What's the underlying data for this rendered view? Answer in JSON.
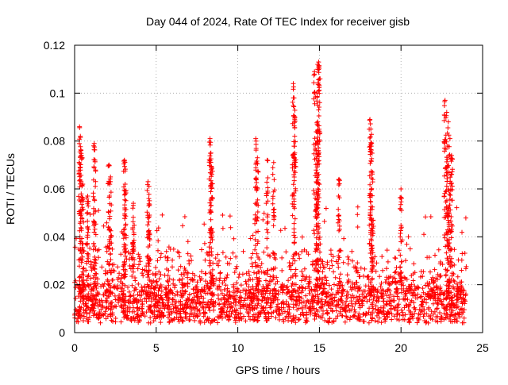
{
  "chart_data": {
    "type": "scatter",
    "title": "Day 044 of 2024, Rate Of TEC Index for receiver gisb",
    "xlabel": "GPS time / hours",
    "ylabel": "ROTI / TECUs",
    "xlim": [
      0,
      25
    ],
    "ylim": [
      0,
      0.12
    ],
    "xticks": [
      0,
      5,
      10,
      15,
      20,
      25
    ],
    "xtick_labels": [
      "0",
      "5",
      "10",
      "15",
      "20",
      "25"
    ],
    "yticks": [
      0,
      0.02,
      0.04,
      0.06,
      0.08,
      0.1,
      0.12
    ],
    "ytick_labels": [
      "0",
      "0.02",
      "0.04",
      "0.06",
      "0.08",
      "0.1",
      "0.12"
    ],
    "grid": true,
    "marker": "+",
    "color": "#ff0000",
    "series": [
      {
        "name": "ROTI",
        "base_level": 0.013,
        "x_range": [
          0,
          24
        ],
        "peaks": [
          [
            0.3,
            0.086
          ],
          [
            0.35,
            0.082
          ],
          [
            0.4,
            0.074
          ],
          [
            0.5,
            0.062
          ],
          [
            0.8,
            0.057
          ],
          [
            1.2,
            0.079
          ],
          [
            1.25,
            0.072
          ],
          [
            2.1,
            0.07
          ],
          [
            2.2,
            0.065
          ],
          [
            3.05,
            0.072
          ],
          [
            3.1,
            0.062
          ],
          [
            3.6,
            0.054
          ],
          [
            4.5,
            0.063
          ],
          [
            4.55,
            0.056
          ],
          [
            8.3,
            0.081
          ],
          [
            8.35,
            0.075
          ],
          [
            8.4,
            0.069
          ],
          [
            11.1,
            0.081
          ],
          [
            11.2,
            0.073
          ],
          [
            11.8,
            0.072
          ],
          [
            12.2,
            0.071
          ],
          [
            13.4,
            0.104
          ],
          [
            13.45,
            0.098
          ],
          [
            13.5,
            0.09
          ],
          [
            14.7,
            0.109
          ],
          [
            14.9,
            0.112
          ],
          [
            14.95,
            0.113
          ],
          [
            15.0,
            0.106
          ],
          [
            14.85,
            0.1
          ],
          [
            14.9,
            0.088
          ],
          [
            14.8,
            0.079
          ],
          [
            16.2,
            0.064
          ],
          [
            18.1,
            0.089
          ],
          [
            18.15,
            0.085
          ],
          [
            18.2,
            0.079
          ],
          [
            18.25,
            0.067
          ],
          [
            20.0,
            0.06
          ],
          [
            22.7,
            0.097
          ],
          [
            22.8,
            0.092
          ],
          [
            22.9,
            0.088
          ],
          [
            23.0,
            0.081
          ],
          [
            23.1,
            0.074
          ],
          [
            22.85,
            0.067
          ]
        ]
      }
    ]
  }
}
